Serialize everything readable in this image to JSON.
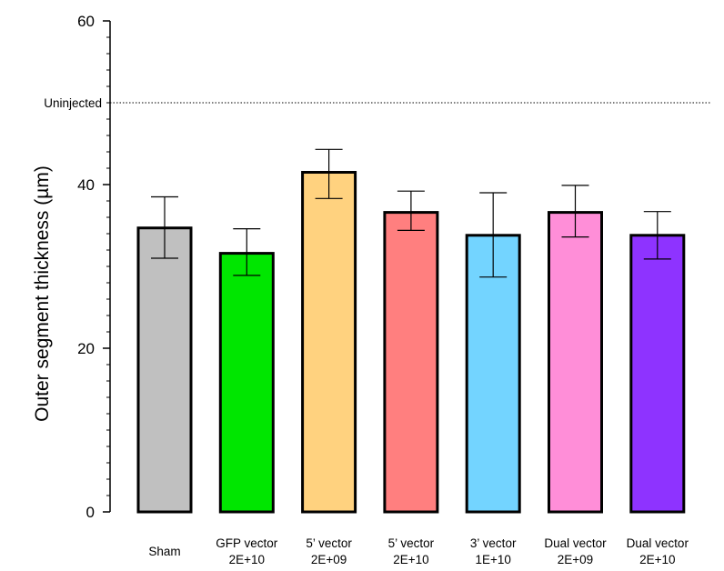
{
  "chart_data": {
    "type": "bar",
    "title": "",
    "xlabel": "",
    "ylabel": "Outer segment thickness (µm)",
    "ylim": [
      0,
      60
    ],
    "y_major_ticks": [
      0,
      20,
      40,
      60
    ],
    "y_minor_step": 2,
    "grid": false,
    "categories": [
      [
        "Sham"
      ],
      [
        "GFP vector",
        "2E+10"
      ],
      [
        "5’ vector",
        "2E+09"
      ],
      [
        "5’ vector",
        "2E+10"
      ],
      [
        "3’ vector",
        "1E+10"
      ],
      [
        "Dual vector",
        "2E+09"
      ],
      [
        "Dual vector",
        "2E+10"
      ]
    ],
    "values": [
      34.7,
      31.6,
      41.5,
      36.6,
      33.8,
      36.6,
      33.8
    ],
    "error_low": [
      31.0,
      28.9,
      38.3,
      34.4,
      28.7,
      33.6,
      30.9
    ],
    "error_high": [
      38.5,
      34.6,
      44.3,
      39.2,
      39.0,
      39.9,
      36.7
    ],
    "colors": [
      "#c0c0c0",
      "#00e600",
      "#ffd27f",
      "#ff7f7f",
      "#73d4ff",
      "#ff8ed8",
      "#8e33ff"
    ],
    "reference_line": {
      "label": "Uninjected",
      "value": 50,
      "style": "dotted"
    }
  }
}
